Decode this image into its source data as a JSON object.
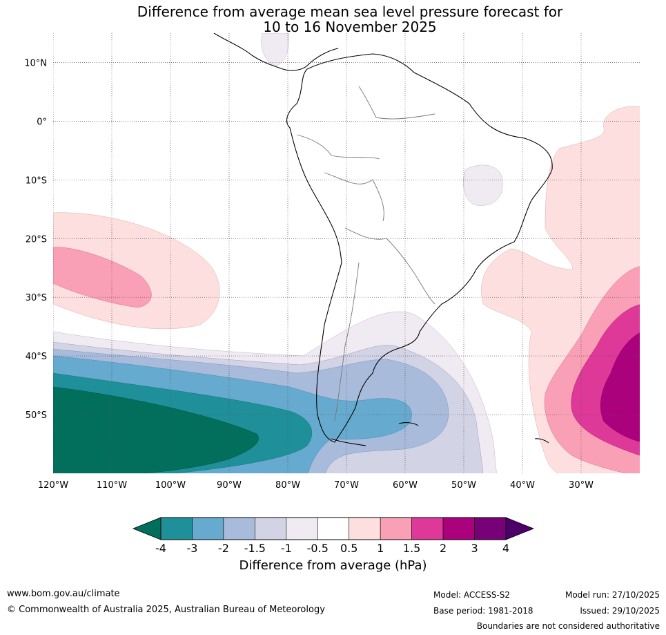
{
  "title": {
    "line1": "Difference from average mean sea level pressure forecast for",
    "line2": "10 to 16 November 2025"
  },
  "map": {
    "lon_range": [
      -120,
      -20
    ],
    "lat_range": [
      -60,
      15
    ],
    "lat_labels": [
      "10°N",
      "0°",
      "10°S",
      "20°S",
      "30°S",
      "40°S",
      "50°S"
    ],
    "lat_values": [
      10,
      0,
      -10,
      -20,
      -30,
      -40,
      -50
    ],
    "lon_labels": [
      "120°W",
      "110°W",
      "100°W",
      "90°W",
      "80°W",
      "70°W",
      "60°W",
      "50°W",
      "40°W",
      "30°W"
    ],
    "lon_values": [
      -120,
      -110,
      -100,
      -90,
      -80,
      -70,
      -60,
      -50,
      -40,
      -30
    ]
  },
  "colorbar": {
    "tick_labels": [
      "-4",
      "-3",
      "-2",
      "-1.5",
      "-1",
      "-0.5",
      "0.5",
      "1",
      "1.5",
      "2",
      "3",
      "4"
    ],
    "colors": [
      "#1f9099",
      "#66aacf",
      "#a8bbdb",
      "#d3d3e6",
      "#f0ebf2",
      "#ffffff",
      "#fddfdf",
      "#f9a0b6",
      "#de3898",
      "#ac017c",
      "#790177"
    ],
    "low_extend_color": "#026e5c",
    "high_extend_color": "#4d006a",
    "label": "Difference from average (hPa)"
  },
  "footer": {
    "website": "www.bom.gov.au/climate",
    "copyright": "© Commonwealth of Australia 2025, Australian Bureau of Meteorology",
    "model": "Model: ACCESS-S2",
    "base_period": "Base period: 1981-2018",
    "model_run": "Model run: 27/10/2025",
    "issued": "Issued: 29/10/2025",
    "boundaries_note": "Boundaries are not considered authoritative"
  }
}
